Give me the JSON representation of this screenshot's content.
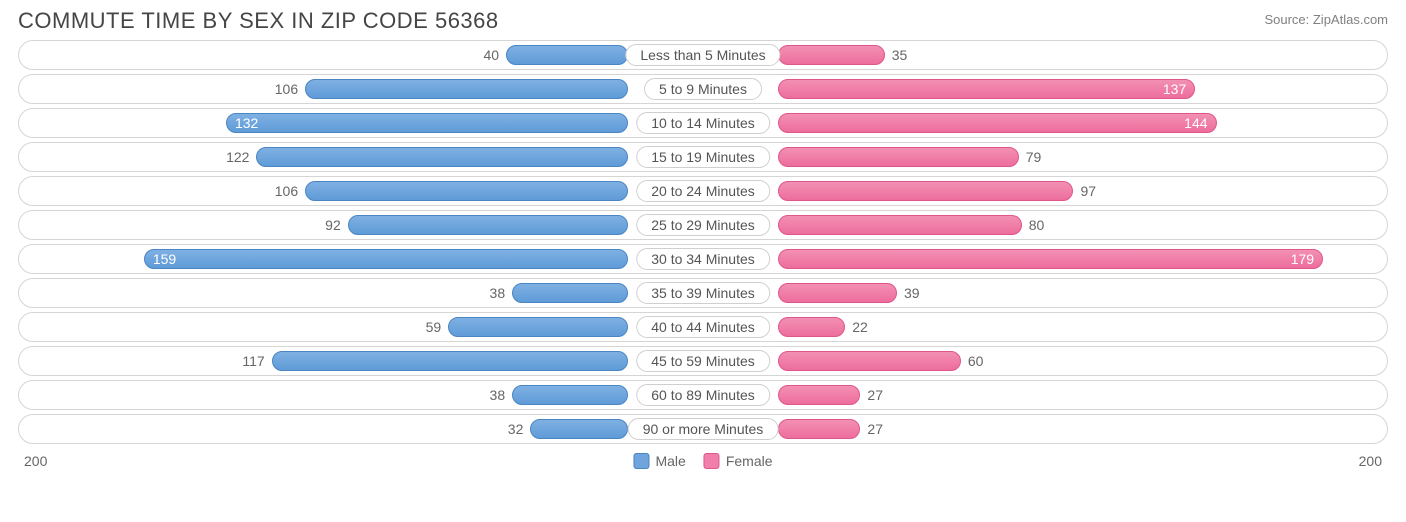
{
  "header": {
    "title": "COMMUTE TIME BY SEX IN ZIP CODE 56368",
    "source": "Source: ZipAtlas.com"
  },
  "chart": {
    "type": "diverging-bar",
    "axis_max": 200,
    "axis_left_label": "200",
    "axis_right_label": "200",
    "male_color": "#6fa4dc",
    "male_border": "#4a85c4",
    "female_color": "#f07fab",
    "female_border": "#e0568a",
    "background_color": "#ffffff",
    "row_border_color": "#d5d5d5",
    "label_fontsize": 14,
    "title_fontsize": 22,
    "categories": [
      {
        "label": "Less than 5 Minutes",
        "male": 40,
        "female": 35
      },
      {
        "label": "5 to 9 Minutes",
        "male": 106,
        "female": 137
      },
      {
        "label": "10 to 14 Minutes",
        "male": 132,
        "female": 144
      },
      {
        "label": "15 to 19 Minutes",
        "male": 122,
        "female": 79
      },
      {
        "label": "20 to 24 Minutes",
        "male": 106,
        "female": 97
      },
      {
        "label": "25 to 29 Minutes",
        "male": 92,
        "female": 80
      },
      {
        "label": "30 to 34 Minutes",
        "male": 159,
        "female": 179
      },
      {
        "label": "35 to 39 Minutes",
        "male": 38,
        "female": 39
      },
      {
        "label": "40 to 44 Minutes",
        "male": 59,
        "female": 22
      },
      {
        "label": "45 to 59 Minutes",
        "male": 117,
        "female": 60
      },
      {
        "label": "60 to 89 Minutes",
        "male": 38,
        "female": 27
      },
      {
        "label": "90 or more Minutes",
        "male": 32,
        "female": 27
      }
    ],
    "legend": {
      "male_label": "Male",
      "female_label": "Female"
    }
  }
}
